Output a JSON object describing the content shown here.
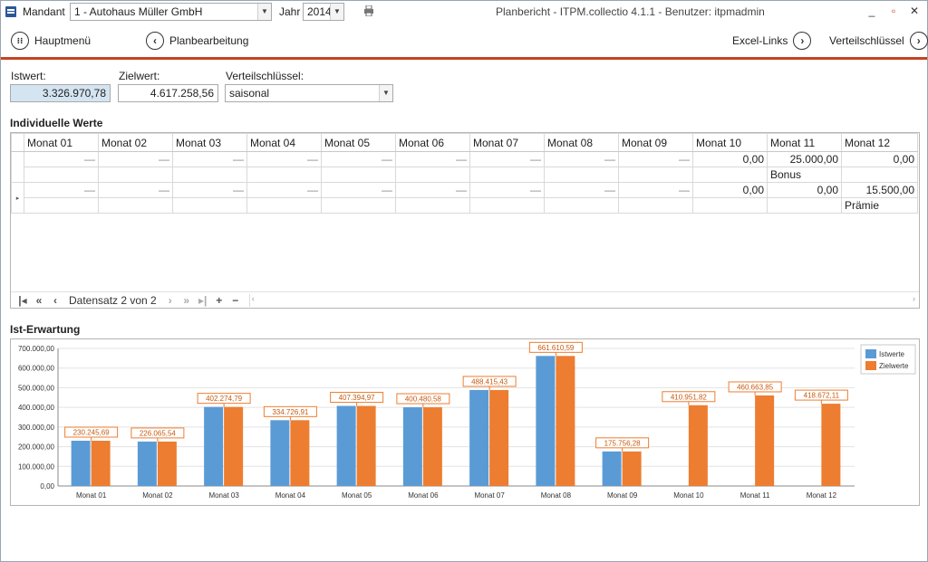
{
  "titlebar": {
    "mandant_label": "Mandant",
    "mandant_value": "1 - Autohaus Müller GmbH",
    "jahr_label": "Jahr",
    "jahr_value": "2014",
    "window_title": "Planbericht - ITPM.collectio 4.1.1 - Benutzer: itpmadmin",
    "minimize": "_",
    "maximize": "▫",
    "close": "✕"
  },
  "toolbar": {
    "hauptmenu": "Hauptmenü",
    "planbearbeitung": "Planbearbeitung",
    "excel_links": "Excel-Links",
    "verteilschluessel": "Verteilschlüssel"
  },
  "fields": {
    "istwert_label": "Istwert:",
    "istwert_value": "3.326.970,78",
    "zielwert_label": "Zielwert:",
    "zielwert_value": "4.617.258,56",
    "verteil_label": "Verteilschlüssel:",
    "verteil_value": "saisonal"
  },
  "grid": {
    "title": "Individuelle Werte",
    "columns": [
      "Monat 01",
      "Monat 02",
      "Monat 03",
      "Monat 04",
      "Monat 05",
      "Monat 06",
      "Monat 07",
      "Monat 08",
      "Monat 09",
      "Monat 10",
      "Monat 11",
      "Monat 12"
    ],
    "rows": [
      {
        "values": [
          "—",
          "—",
          "—",
          "—",
          "—",
          "—",
          "—",
          "—",
          "—",
          "0,00",
          "25.000,00",
          "0,00"
        ],
        "note": [
          "",
          "",
          "",
          "",
          "",
          "",
          "",
          "",
          "",
          "",
          "Bonus",
          ""
        ],
        "current": false
      },
      {
        "values": [
          "—",
          "—",
          "—",
          "—",
          "—",
          "—",
          "—",
          "—",
          "—",
          "0,00",
          "0,00",
          "15.500,00"
        ],
        "note": [
          "",
          "",
          "",
          "",
          "",
          "",
          "",
          "",
          "",
          "",
          "",
          "Prämie"
        ],
        "current": true
      }
    ],
    "record_text": "Datensatz 2 von 2"
  },
  "chart_data": {
    "type": "bar",
    "title": "Ist-Erwartung",
    "categories": [
      "Monat 01",
      "Monat 02",
      "Monat 03",
      "Monat 04",
      "Monat 05",
      "Monat 06",
      "Monat 07",
      "Monat 08",
      "Monat 09",
      "Monat 10",
      "Monat 11",
      "Monat 12"
    ],
    "series": [
      {
        "name": "Istwerte",
        "color": "#5b9bd5",
        "values": [
          230245.69,
          226065.54,
          402274.79,
          334726.91,
          407394.97,
          400480.58,
          488415.43,
          661610.59,
          175756.28,
          null,
          null,
          null
        ]
      },
      {
        "name": "Zielwerte",
        "color": "#ed7d31",
        "values": [
          230245.69,
          226065.54,
          402274.79,
          334726.91,
          407394.97,
          400480.58,
          488415.43,
          661610.59,
          175756.28,
          410951.82,
          460663.85,
          418672.11
        ]
      }
    ],
    "data_labels": [
      "230.245,69",
      "226.065,54",
      "402.274,79",
      "334.726,91",
      "407.394,97",
      "400.480,58",
      "488.415,43",
      "661.610,59",
      "175.756,28",
      "410.951,82",
      "460.663,85",
      "418.672,11"
    ],
    "yticks": [
      "0,00",
      "100.000,00",
      "200.000,00",
      "300.000,00",
      "400.000,00",
      "500.000,00",
      "600.000,00",
      "700.000,00"
    ],
    "ylim": [
      0,
      700000
    ],
    "legend": "top-right",
    "grid": true
  }
}
